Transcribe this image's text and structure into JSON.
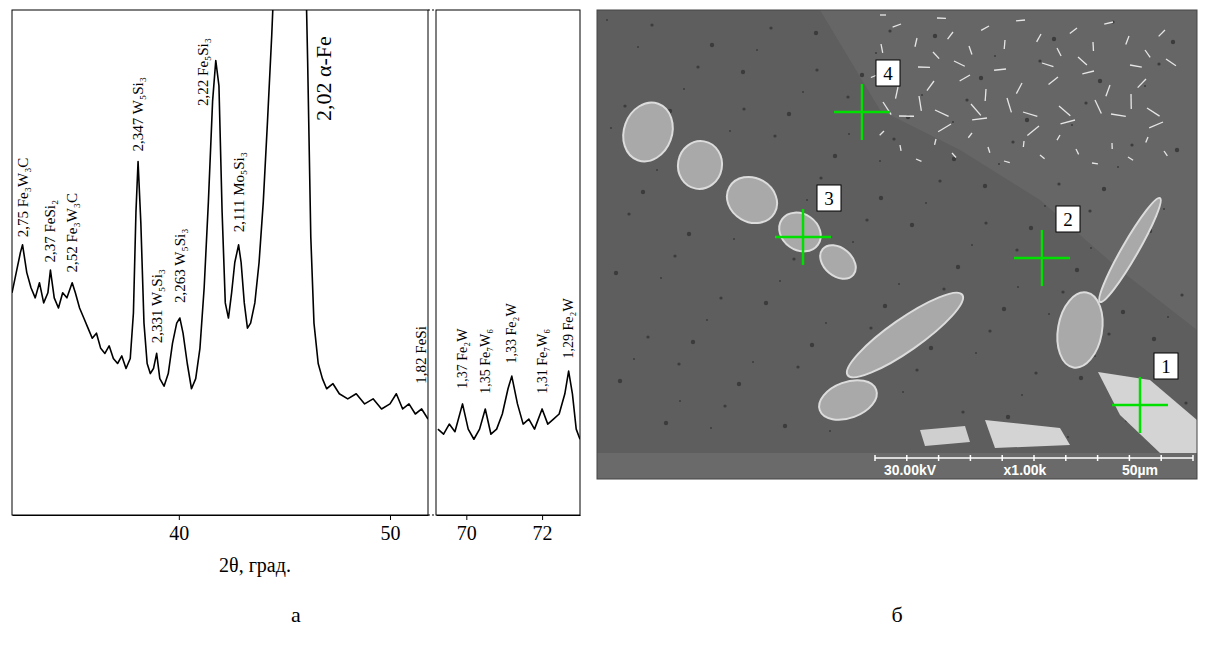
{
  "chart_data": {
    "type": "line",
    "x_label": "2θ, град.",
    "ylim": [
      0,
      100
    ],
    "tick_labels": "x",
    "panel_label": "а",
    "panels": [
      {
        "xlim": [
          32.1,
          51.8
        ],
        "xticks": [
          40,
          50
        ],
        "series": [
          {
            "color": "#000000",
            "x": [
              32.1,
              32.3,
              32.5,
              32.6,
              32.8,
              33.0,
              33.2,
              33.4,
              33.6,
              33.8,
              33.92,
              34.1,
              34.3,
              34.5,
              34.7,
              34.95,
              35.1,
              35.3,
              35.5,
              35.7,
              35.9,
              36.1,
              36.3,
              36.5,
              36.7,
              36.9,
              37.1,
              37.3,
              37.5,
              37.7,
              37.85,
              37.97,
              38.07,
              38.2,
              38.35,
              38.5,
              38.65,
              38.8,
              38.95,
              39.1,
              39.3,
              39.5,
              39.7,
              39.9,
              40.05,
              40.2,
              40.4,
              40.6,
              40.8,
              41.0,
              41.2,
              41.4,
              41.6,
              41.75,
              41.9,
              42.05,
              42.2,
              42.35,
              42.5,
              42.65,
              42.83,
              42.95,
              43.1,
              43.25,
              43.4,
              43.6,
              43.8,
              44.0,
              44.2,
              44.4,
              44.6,
              44.8,
              45.0,
              45.3,
              45.6,
              45.9,
              46.1,
              46.25,
              46.4,
              46.6,
              46.8,
              47.0,
              47.3,
              47.6,
              48.0,
              48.4,
              48.8,
              49.2,
              49.6,
              50.0,
              50.3,
              50.6,
              50.9,
              51.2,
              51.5,
              51.8
            ],
            "values": [
              44,
              48,
              52,
              53.5,
              48,
              45,
              43,
              46,
              42,
              44,
              48.5,
              43,
              41,
              44,
              43,
              46,
              44,
              41,
              39,
              37,
              35,
              36,
              33,
              32,
              33.5,
              31,
              30,
              31.5,
              29,
              31,
              40,
              60,
              70,
              58,
              38,
              30,
              28,
              29,
              32,
              27,
              25.5,
              28,
              34,
              38,
              39,
              36,
              30,
              25,
              27,
              33,
              45,
              62,
              82,
              90,
              85,
              60,
              42,
              39,
              44,
              50,
              53.5,
              50,
              42,
              37,
              38,
              42,
              50,
              62,
              78,
              95,
              115,
              130,
              138,
              142,
              140,
              130,
              90,
              55,
              38,
              30,
              27,
              25,
              26,
              24,
              23,
              24,
              22,
              23,
              21,
              22,
              24,
              21,
              22,
              20,
              21,
              19
            ]
          }
        ],
        "annotations": [
          {
            "text": "2,75 Fe₃W₃C",
            "x": 32.6,
            "y": 55
          },
          {
            "text": "2,37 FeSi₂",
            "x": 33.92,
            "y": 50
          },
          {
            "text": "2,52 Fe₃W₃C",
            "x": 34.95,
            "y": 48
          },
          {
            "text": "2,347 W₅Si₃",
            "x": 38.07,
            "y": 72
          },
          {
            "text": "2,331 W₅Si₃",
            "x": 38.95,
            "y": 34
          },
          {
            "text": "2,263 W₅Si₃",
            "x": 40.05,
            "y": 42
          },
          {
            "text": "2,22 Fe₅Si₃",
            "x": 41.15,
            "y": 81
          },
          {
            "text": "2,111 Mo₅Si₃",
            "x": 42.83,
            "y": 56
          },
          {
            "text": "2,02 α-Fe",
            "x": 46.85,
            "y": 78
          },
          {
            "text": "1,82 FeSi",
            "x": 51.45,
            "y": 26
          }
        ]
      },
      {
        "xlim": [
          69.2,
          73.0
        ],
        "xticks": [
          70,
          72
        ],
        "series": [
          {
            "color": "#000000",
            "x": [
              69.25,
              69.4,
              69.55,
              69.7,
              69.9,
              70.05,
              70.2,
              70.35,
              70.5,
              70.65,
              70.8,
              70.95,
              71.1,
              71.2,
              71.35,
              71.5,
              71.65,
              71.8,
              72.0,
              72.15,
              72.3,
              72.45,
              72.6,
              72.7,
              72.8,
              72.9,
              73.0
            ],
            "values": [
              17,
              16,
              18,
              16.5,
              22,
              17,
              15,
              17,
              21,
              16,
              17,
              20,
              25,
              27.5,
              22,
              18,
              19,
              17,
              21,
              18,
              19,
              20,
              24,
              28.5,
              24,
              17,
              15
            ]
          }
        ],
        "annotations": [
          {
            "text": "1,37 Fe₂W",
            "x": 69.9,
            "y": 25
          },
          {
            "text": "1,35 Fe₇W₆",
            "x": 70.5,
            "y": 24
          },
          {
            "text": "1,33 Fe₂W",
            "x": 71.2,
            "y": 30
          },
          {
            "text": "1,31 Fe₇W₆",
            "x": 72.0,
            "y": 24
          },
          {
            "text": "1,29 Fe₂W",
            "x": 72.7,
            "y": 31
          }
        ]
      }
    ]
  },
  "sem_image": {
    "markers": [
      "1",
      "2",
      "3",
      "4"
    ],
    "info_bar": [
      "30.00kV",
      "x1.00k",
      "50µm"
    ],
    "panel_label": "б"
  }
}
